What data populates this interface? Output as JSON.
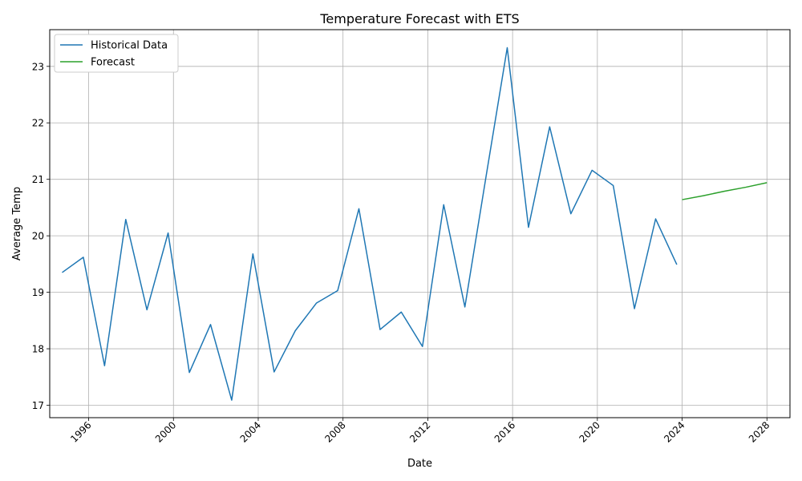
{
  "chart_data": {
    "type": "line",
    "title": "Temperature Forecast with ETS",
    "xlabel": "Date",
    "ylabel": "Average Temp",
    "xlim": [
      "1994-03-01",
      "2029-02-01"
    ],
    "ylim": [
      16.78,
      23.65
    ],
    "x_ticks": [
      "1996",
      "2000",
      "2004",
      "2008",
      "2012",
      "2016",
      "2020",
      "2024",
      "2028"
    ],
    "y_ticks": [
      "17",
      "18",
      "19",
      "20",
      "21",
      "22",
      "23"
    ],
    "grid": true,
    "legend": "top-left",
    "series": [
      {
        "name": "Historical Data",
        "color": "#1f77b4",
        "x": [
          "1994-10-01",
          "1995-10-01",
          "1996-10-01",
          "1997-10-01",
          "1998-10-01",
          "1999-10-01",
          "2000-10-01",
          "2001-10-01",
          "2002-10-01",
          "2003-10-01",
          "2004-10-01",
          "2005-10-01",
          "2006-10-01",
          "2007-10-01",
          "2008-10-01",
          "2009-10-01",
          "2010-10-01",
          "2011-10-01",
          "2012-10-01",
          "2013-10-01",
          "2014-10-01",
          "2015-10-01",
          "2016-10-01",
          "2017-10-01",
          "2018-10-01",
          "2019-10-01",
          "2020-10-01",
          "2021-10-01",
          "2022-10-01",
          "2023-10-01"
        ],
        "values": [
          19.35,
          19.62,
          17.7,
          20.29,
          18.69,
          20.05,
          17.58,
          18.43,
          17.09,
          19.68,
          17.59,
          18.32,
          18.81,
          19.03,
          20.48,
          18.34,
          18.65,
          18.04,
          20.55,
          18.74,
          21.05,
          23.33,
          20.15,
          21.93,
          20.39,
          21.16,
          20.89,
          18.71,
          20.3,
          19.49
        ]
      },
      {
        "name": "Forecast",
        "color": "#2ca02c",
        "x": [
          "2024-01-01",
          "2025-01-01",
          "2026-01-01",
          "2027-01-01",
          "2028-01-01"
        ],
        "values": [
          20.64,
          20.71,
          20.79,
          20.86,
          20.94
        ]
      }
    ]
  }
}
